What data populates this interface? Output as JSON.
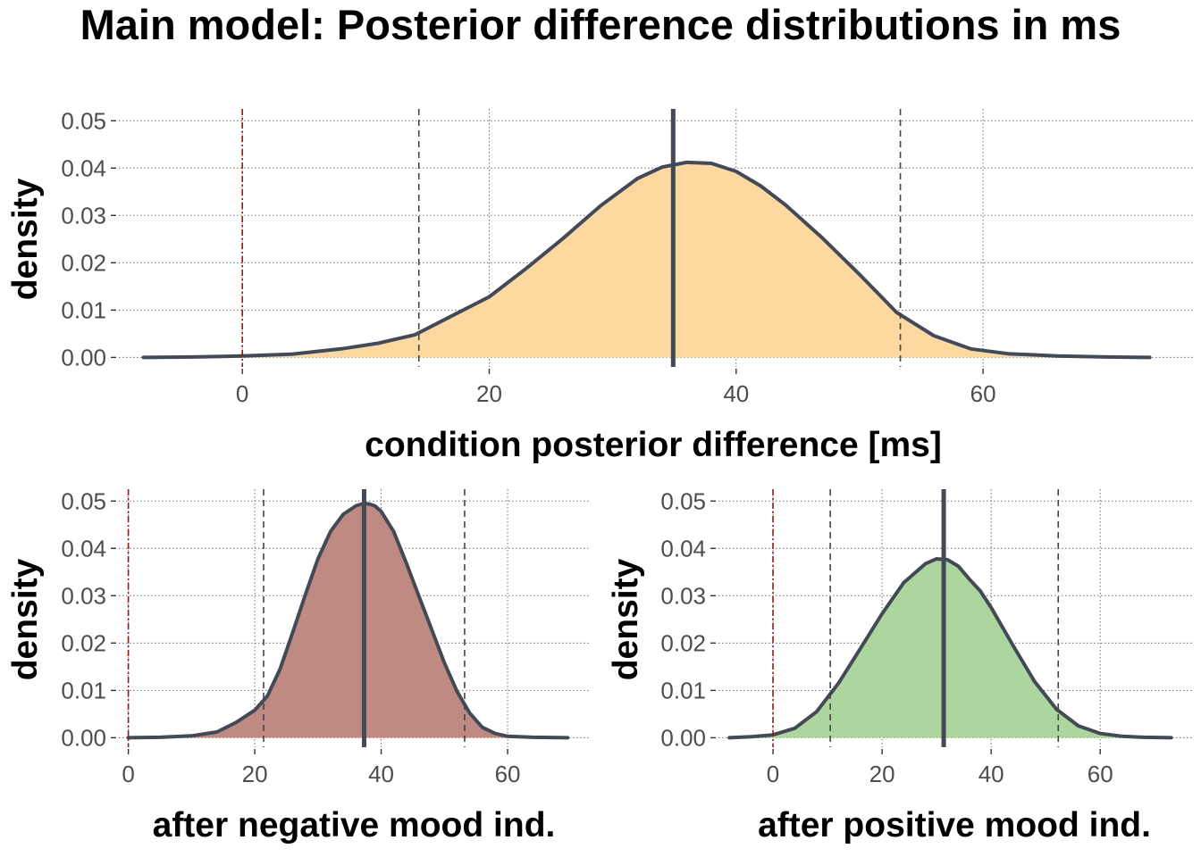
{
  "title": "Main model: Posterior difference distributions in ms",
  "colors": {
    "outline": "#434a55",
    "zero_line": "#8b1a1a",
    "ci_line": "#444444",
    "tick_text": "#4d4d4d"
  },
  "chart_data": [
    {
      "type": "area",
      "xlabel": "condition posterior difference [ms]",
      "ylabel": "density",
      "fill": "#fdd9a0",
      "xlim": [
        -10,
        77
      ],
      "ylim": [
        -0.002,
        0.0525
      ],
      "xticks": [
        0,
        20,
        40,
        60
      ],
      "yticks": [
        0.0,
        0.01,
        0.02,
        0.03,
        0.04,
        0.05
      ],
      "ytick_labels": [
        "0.00",
        "0.01",
        "0.02",
        "0.03",
        "0.04",
        "0.05"
      ],
      "zero_line": 0,
      "ci_lower": 14.3,
      "ci_upper": 53.3,
      "mean": 34.9,
      "x": [
        -8,
        -4,
        0,
        4,
        8,
        11,
        14,
        17,
        20,
        23,
        26,
        29,
        32,
        34,
        36,
        38,
        40,
        42,
        44,
        47,
        50,
        53,
        56,
        59,
        62,
        66,
        70,
        73.5
      ],
      "y": [
        0.0,
        0.0001,
        0.0003,
        0.0007,
        0.0018,
        0.003,
        0.0048,
        0.0088,
        0.0128,
        0.0188,
        0.0252,
        0.032,
        0.0378,
        0.0402,
        0.0412,
        0.041,
        0.0393,
        0.0362,
        0.0322,
        0.0252,
        0.0175,
        0.0095,
        0.0046,
        0.0018,
        0.0008,
        0.0003,
        0.0001,
        0.0
      ]
    },
    {
      "type": "area",
      "xlabel": "after negative mood ind.",
      "ylabel": "density",
      "fill": "#bf8a82",
      "xlim": [
        -1.5,
        73
      ],
      "ylim": [
        -0.002,
        0.0525
      ],
      "xticks": [
        0,
        20,
        40,
        60
      ],
      "yticks": [
        0.0,
        0.01,
        0.02,
        0.03,
        0.04,
        0.05
      ],
      "ytick_labels": [
        "0.00",
        "0.01",
        "0.02",
        "0.03",
        "0.04",
        "0.05"
      ],
      "zero_line": 0,
      "ci_lower": 21.4,
      "ci_upper": 53.2,
      "mean": 37.3,
      "x": [
        0,
        5,
        10,
        14,
        17,
        20,
        22,
        24,
        26,
        28,
        30,
        32,
        34,
        36,
        37,
        38,
        39,
        40,
        42,
        44,
        46,
        48,
        50,
        52,
        54,
        56,
        58,
        60,
        64,
        69.5
      ],
      "y": [
        0.0,
        0.0001,
        0.0004,
        0.0012,
        0.0032,
        0.0058,
        0.0088,
        0.0145,
        0.0222,
        0.0302,
        0.0378,
        0.0436,
        0.0472,
        0.049,
        0.0494,
        0.0494,
        0.049,
        0.0478,
        0.0435,
        0.0368,
        0.0298,
        0.0228,
        0.0158,
        0.0098,
        0.0052,
        0.0022,
        0.0009,
        0.0003,
        0.0001,
        0.0
      ]
    },
    {
      "type": "area",
      "xlabel": "after positive mood ind.",
      "ylabel": "density",
      "fill": "#acd69e",
      "xlim": [
        -10,
        77
      ],
      "ylim": [
        -0.002,
        0.0525
      ],
      "xticks": [
        0,
        20,
        40,
        60
      ],
      "yticks": [
        0.0,
        0.01,
        0.02,
        0.03,
        0.04,
        0.05
      ],
      "ytick_labels": [
        "0.00",
        "0.01",
        "0.02",
        "0.03",
        "0.04",
        "0.05"
      ],
      "zero_line": 0,
      "ci_lower": 10.5,
      "ci_upper": 52.3,
      "mean": 31.3,
      "x": [
        -8,
        -4,
        0,
        4,
        8,
        12,
        16,
        20,
        24,
        28,
        30,
        32,
        34,
        36,
        38,
        40,
        44,
        48,
        52,
        56,
        60,
        64,
        68,
        73
      ],
      "y": [
        0.0,
        0.0002,
        0.0006,
        0.002,
        0.0055,
        0.0115,
        0.0188,
        0.0262,
        0.0328,
        0.0368,
        0.0378,
        0.0376,
        0.0362,
        0.0335,
        0.031,
        0.0275,
        0.0195,
        0.0118,
        0.006,
        0.0025,
        0.0009,
        0.0003,
        0.0001,
        0.0
      ]
    }
  ]
}
